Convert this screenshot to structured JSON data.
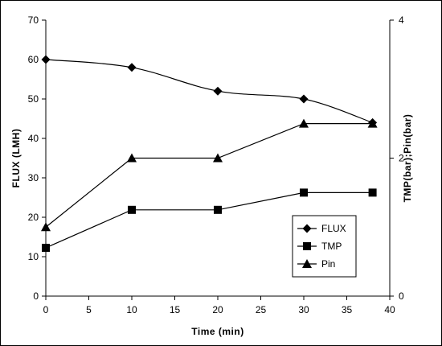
{
  "chart_data": {
    "type": "line",
    "xlabel": "Time (min)",
    "ylabel_left": "FLUX (LMH)",
    "ylabel_right": "TMP(bar);Pin(bar)",
    "xlim": [
      0,
      40
    ],
    "ylim_left": [
      0,
      70
    ],
    "ylim_right": [
      0,
      4
    ],
    "xticks": [
      0,
      5,
      10,
      15,
      20,
      25,
      30,
      35,
      40
    ],
    "yticks_left": [
      0,
      10,
      20,
      30,
      40,
      50,
      60,
      70
    ],
    "yticks_right": [
      0,
      2,
      4
    ],
    "grid": false,
    "legend_position": "bottom-right",
    "series": [
      {
        "name": "FLUX",
        "axis": "left",
        "marker": "diamond",
        "x": [
          0,
          10,
          20,
          30,
          38
        ],
        "y": [
          60,
          58,
          52,
          50,
          44
        ],
        "smooth": true
      },
      {
        "name": "TMP",
        "axis": "right",
        "marker": "square",
        "x": [
          0,
          10,
          20,
          30,
          38
        ],
        "y": [
          0.7,
          1.25,
          1.25,
          1.5,
          1.5
        ],
        "smooth": false
      },
      {
        "name": "Pin",
        "axis": "right",
        "marker": "triangle",
        "x": [
          0,
          10,
          20,
          30,
          38
        ],
        "y": [
          1.0,
          2.0,
          2.0,
          2.5,
          2.5
        ],
        "smooth": false
      }
    ]
  }
}
